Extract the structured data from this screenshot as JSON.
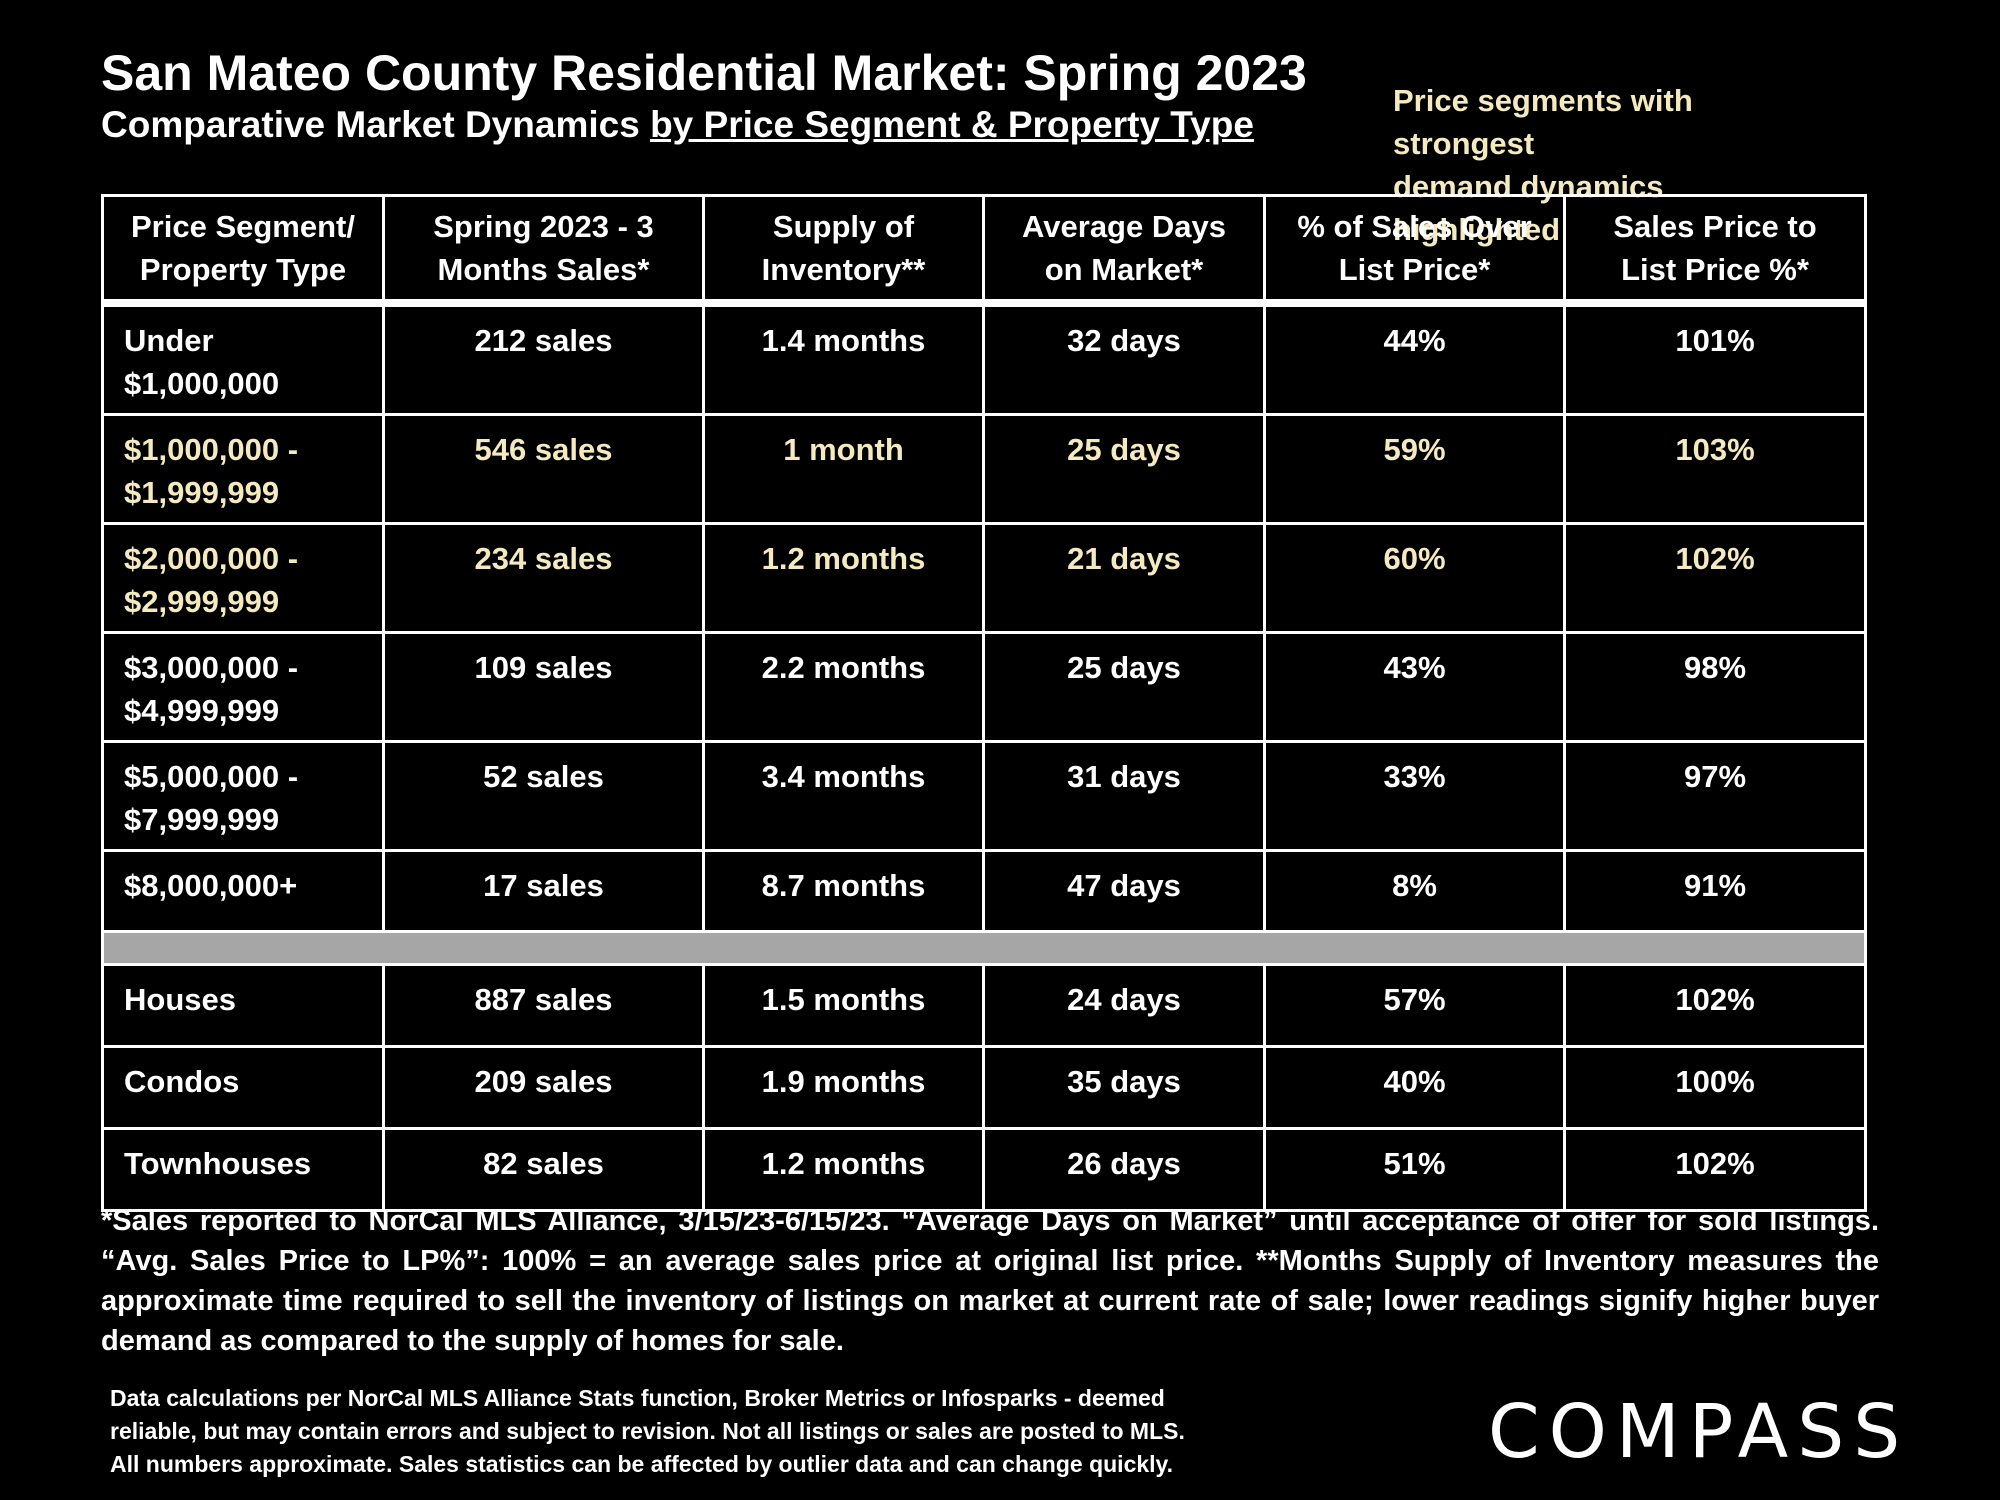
{
  "header": {
    "title": "San Mateo County Residential Market:  Spring 2023",
    "subtitle_plain": "Comparative Market Dynamics ",
    "subtitle_underlined": "by Price Segment & Property Type",
    "note_line1": "Price segments with strongest",
    "note_line2": "demand dynamics highlighted"
  },
  "colors": {
    "highlight": "#f4e9bf",
    "separator": "#a6a6a6",
    "background": "#000000"
  },
  "table": {
    "columns": [
      [
        "Price Segment/",
        "Property Type"
      ],
      [
        "Spring 2023 - 3",
        "Months Sales*"
      ],
      [
        "Supply of",
        "Inventory**"
      ],
      [
        "Average Days",
        "on Market*"
      ],
      [
        "% of Sales Over",
        "List Price*"
      ],
      [
        "Sales Price to",
        "List Price %*"
      ]
    ],
    "segments": [
      {
        "label1": "Under",
        "label2": "$1,000,000",
        "sales": "212 sales",
        "supply": "1.4 months",
        "days": "32 days",
        "over": "44%",
        "ratio": "101%"
      },
      {
        "label1": "$1,000,000 -",
        "label2": "$1,999,999",
        "sales": "546 sales",
        "supply": "1 month",
        "days": "25 days",
        "over": "59%",
        "ratio": "103%"
      },
      {
        "label1": "$2,000,000 -",
        "label2": "$2,999,999",
        "sales": "234 sales",
        "supply": "1.2 months",
        "days": "21 days",
        "over": "60%",
        "ratio": "102%"
      },
      {
        "label1": "$3,000,000 -",
        "label2": "$4,999,999",
        "sales": "109 sales",
        "supply": "2.2 months",
        "days": "25 days",
        "over": "43%",
        "ratio": "98%"
      },
      {
        "label1": "$5,000,000 -",
        "label2": "$7,999,999",
        "sales": "52 sales",
        "supply": "3.4 months",
        "days": "31 days",
        "over": "33%",
        "ratio": "97%"
      },
      {
        "label1": "$8,000,000+",
        "label2": "",
        "sales": "17 sales",
        "supply": "8.7 months",
        "days": "47 days",
        "over": "8%",
        "ratio": "91%"
      }
    ],
    "types": [
      {
        "label": "Houses",
        "sales": "887 sales",
        "supply": "1.5 months",
        "days": "24 days",
        "over": "57%",
        "ratio": "102%"
      },
      {
        "label": "Condos",
        "sales": "209 sales",
        "supply": "1.9 months",
        "days": "35 days",
        "over": "40%",
        "ratio": "100%"
      },
      {
        "label": "Townhouses",
        "sales": "82 sales",
        "supply": "1.2 months",
        "days": "26 days",
        "over": "51%",
        "ratio": "102%"
      }
    ]
  },
  "footnote": "*Sales reported to NorCal MLS Alliance, 3/15/23-6/15/23. “Average Days on Market” until acceptance of offer for sold listings. “Avg. Sales Price to LP%”: 100% = an average sales price at original list price. **Months Supply of Inventory measures the approximate time required to sell the inventory of listings on market at current rate of sale; lower readings signify higher buyer demand as compared to the supply of homes for sale.",
  "disclaimer": {
    "line1": "Data calculations per NorCal MLS Alliance Stats function, Broker Metrics or Infosparks - deemed",
    "line2": "reliable, but may contain errors and subject to revision.  Not all listings or sales are posted to MLS.",
    "line3": "All numbers approximate. Sales statistics can be affected by outlier data and can change quickly."
  },
  "logo": {
    "text": "COMPASS",
    "icon": "compass-o-icon"
  }
}
